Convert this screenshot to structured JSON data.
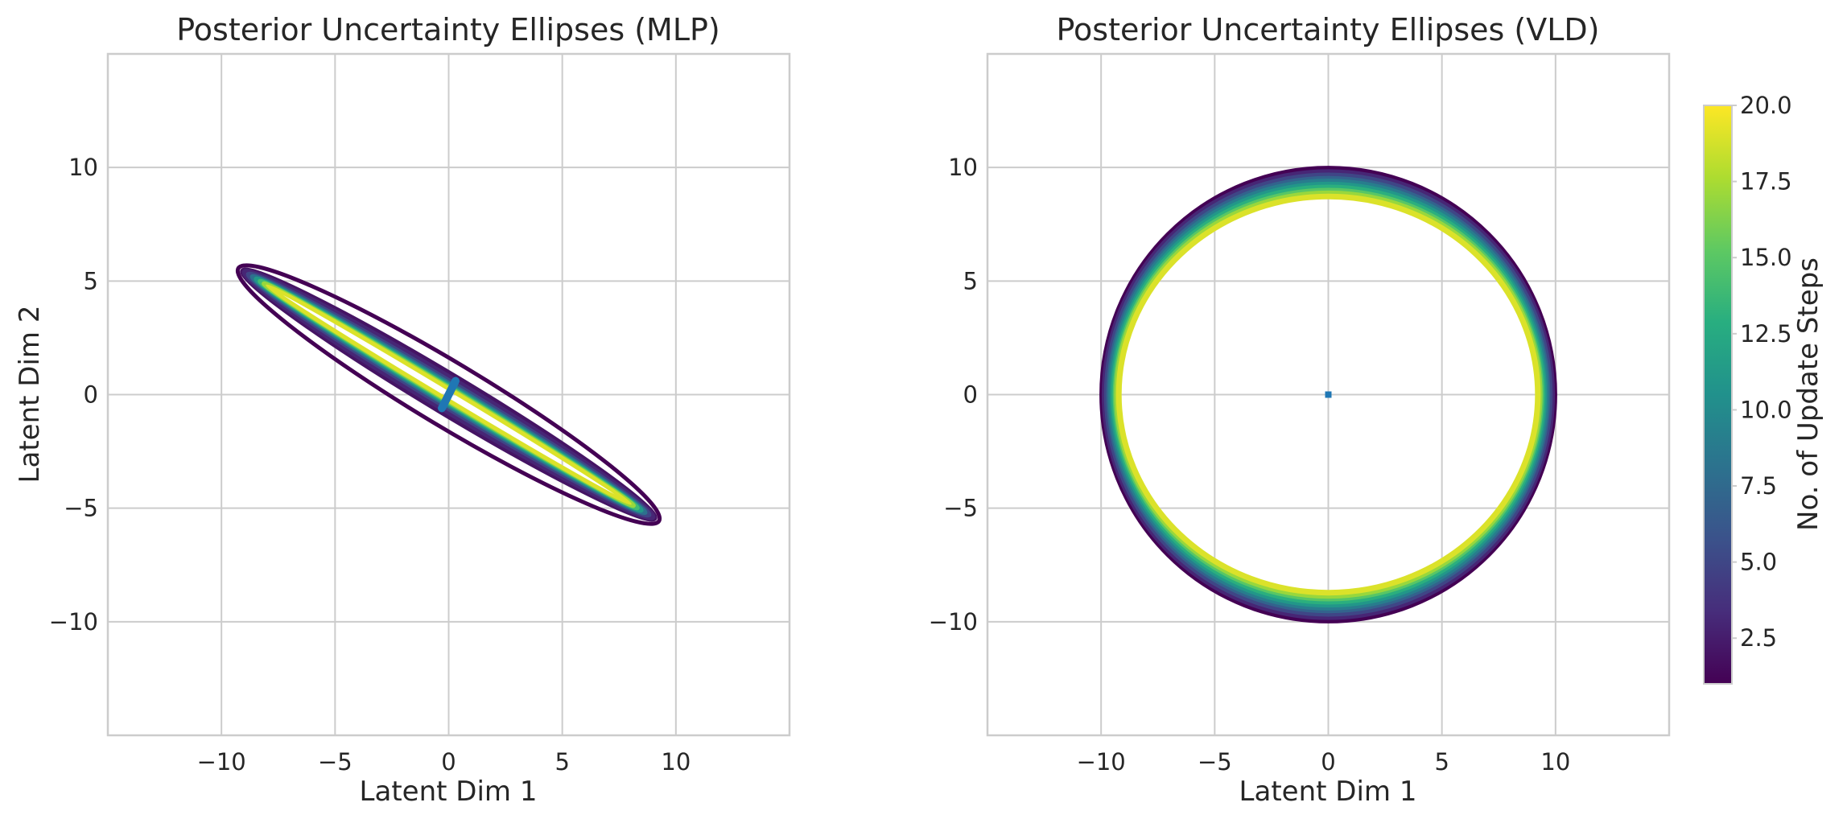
{
  "chart_data": [
    {
      "type": "line",
      "title": "Posterior Uncertainty Ellipses (MLP)",
      "xlabel": "Latent Dim 1",
      "ylabel": "Latent Dim 2",
      "xlim": [
        -15,
        15
      ],
      "ylim": [
        -15,
        15
      ],
      "xticks": [
        -10,
        -5,
        0,
        5,
        10
      ],
      "yticks": [
        -10,
        -5,
        0,
        5,
        10
      ],
      "xtick_labels": [
        "−10",
        "−5",
        "0",
        "5",
        "10"
      ],
      "ytick_labels": [
        "−10",
        "−5",
        "0",
        "5",
        "10"
      ],
      "grid": true,
      "colormap": "viridis",
      "ellipses": [
        {
          "step": 1,
          "cx": 0,
          "cy": 0,
          "major": 10.8,
          "minor": 1.4,
          "angle_deg": -31
        },
        {
          "step": 2,
          "cx": 0,
          "cy": 0,
          "major": 10.6,
          "minor": 0.85,
          "angle_deg": -31
        },
        {
          "step": 3,
          "cx": 0,
          "cy": 0,
          "major": 10.5,
          "minor": 0.7,
          "angle_deg": -31
        },
        {
          "step": 5,
          "cx": 0,
          "cy": 0,
          "major": 10.3,
          "minor": 0.55,
          "angle_deg": -31
        },
        {
          "step": 8,
          "cx": 0,
          "cy": 0,
          "major": 10.1,
          "minor": 0.45,
          "angle_deg": -31
        },
        {
          "step": 11,
          "cx": 0,
          "cy": 0,
          "major": 9.9,
          "minor": 0.38,
          "angle_deg": -31
        },
        {
          "step": 14,
          "cx": 0,
          "cy": 0,
          "major": 9.7,
          "minor": 0.32,
          "angle_deg": -31
        },
        {
          "step": 17,
          "cx": 0,
          "cy": 0,
          "major": 9.5,
          "minor": 0.27,
          "angle_deg": -31
        },
        {
          "step": 19,
          "cx": 0,
          "cy": 0,
          "major": 9.3,
          "minor": 0.22,
          "angle_deg": -31
        }
      ],
      "center_marker": {
        "x": [
          0.3,
          -0.3
        ],
        "y": [
          0.6,
          -0.6
        ],
        "color": "#1f77b4"
      }
    },
    {
      "type": "line",
      "title": "Posterior Uncertainty Ellipses (VLD)",
      "xlabel": "Latent Dim 1",
      "ylabel": "",
      "xlim": [
        -15,
        15
      ],
      "ylim": [
        -15,
        15
      ],
      "xticks": [
        -10,
        -5,
        0,
        5,
        10
      ],
      "yticks": [
        -10,
        -5,
        0,
        5,
        10
      ],
      "xtick_labels": [
        "−10",
        "−5",
        "0",
        "5",
        "10"
      ],
      "ytick_labels": [
        "−10",
        "−5",
        "0",
        "5",
        "10"
      ],
      "grid": true,
      "colormap": "viridis",
      "ellipses": [
        {
          "step": 1,
          "cx": 0,
          "cy": 0,
          "rx": 9.95,
          "ry": 9.95
        },
        {
          "step": 3,
          "cx": 0,
          "cy": 0,
          "rx": 9.85,
          "ry": 9.8
        },
        {
          "step": 5,
          "cx": 0,
          "cy": 0,
          "rx": 9.75,
          "ry": 9.65
        },
        {
          "step": 7,
          "cx": 0,
          "cy": 0,
          "rx": 9.65,
          "ry": 9.5
        },
        {
          "step": 9,
          "cx": 0,
          "cy": 0,
          "rx": 9.58,
          "ry": 9.38
        },
        {
          "step": 11,
          "cx": 0,
          "cy": 0,
          "rx": 9.5,
          "ry": 9.25
        },
        {
          "step": 13,
          "cx": 0,
          "cy": 0,
          "rx": 9.43,
          "ry": 9.12
        },
        {
          "step": 15,
          "cx": 0,
          "cy": 0,
          "rx": 9.36,
          "ry": 8.98
        },
        {
          "step": 17,
          "cx": 0,
          "cy": 0,
          "rx": 9.3,
          "ry": 8.86
        },
        {
          "step": 19,
          "cx": 0,
          "cy": 0,
          "rx": 9.22,
          "ry": 8.72
        }
      ],
      "center_marker": {
        "x": [
          0
        ],
        "y": [
          0
        ],
        "color": "#1f77b4"
      }
    }
  ],
  "colorbar": {
    "label": "No. of Update Steps",
    "min": 1,
    "max": 20,
    "colormap": "viridis",
    "ticks": [
      2.5,
      5.0,
      7.5,
      10.0,
      12.5,
      15.0,
      17.5,
      20.0
    ],
    "tick_labels": [
      "2.5",
      "5.0",
      "7.5",
      "10.0",
      "12.5",
      "15.0",
      "17.5",
      "20.0"
    ]
  }
}
